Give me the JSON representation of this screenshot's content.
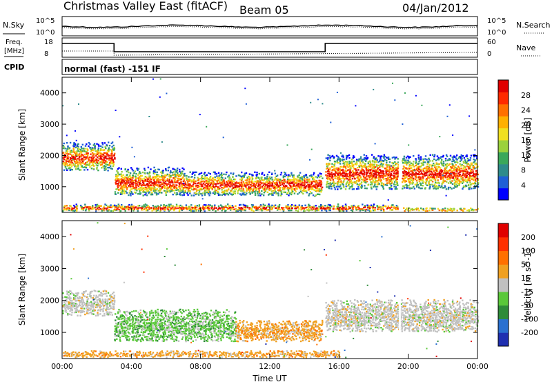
{
  "header": {
    "station": "Christmas Valley East (fitACF)",
    "beam": "Beam 05",
    "date": "04/Jan/2012"
  },
  "strips": {
    "nsky_label": "N.Sky",
    "nsearch_label": "N.Search",
    "noise_ticks": [
      "10^5",
      "10^0"
    ],
    "freq_label": "Freq.",
    "freq_unit": "[MHz]",
    "freq_ticks": [
      "18",
      "8"
    ],
    "nave_label": "Nave",
    "nave_ticks": [
      "60",
      "0"
    ],
    "cpid_label": "CPID",
    "cpid_value": "normal (fast) -151 IF"
  },
  "time_axis": {
    "label": "Time UT",
    "ticks": [
      "00:00",
      "04:00",
      "08:00",
      "12:00",
      "16:00",
      "20:00",
      "00:00"
    ]
  },
  "chart_data": [
    {
      "type": "heatmap",
      "panel": "power",
      "ylabel": "Slant Range [km]",
      "yticks": [
        1000,
        2000,
        3000,
        4000
      ],
      "ylim": [
        180,
        4500
      ],
      "xlim_hours": [
        0,
        24
      ],
      "colorbar_label": "Power [dB]",
      "colorbar_ticks": [
        4,
        8,
        12,
        16,
        20,
        24,
        28
      ],
      "colorbar_colors": [
        "#0000ff",
        "#1f5fd6",
        "#2e8b8b",
        "#3aa85a",
        "#9bd23c",
        "#f0e020",
        "#ffb000",
        "#ff7000",
        "#ff2a00",
        "#e00000"
      ],
      "bands": [
        {
          "from": 0,
          "to": 3,
          "r0": 1500,
          "r1": 2400
        },
        {
          "from": 3,
          "to": 7,
          "r0": 700,
          "r1": 1600
        },
        {
          "from": 7,
          "to": 15,
          "r0": 700,
          "r1": 1450
        },
        {
          "from": 15.2,
          "to": 19.4,
          "r0": 900,
          "r1": 2000
        },
        {
          "from": 19.6,
          "to": 24,
          "r0": 900,
          "r1": 2000
        },
        {
          "from": 0,
          "to": 19.4,
          "r0": 200,
          "r1": 420
        },
        {
          "from": 19.6,
          "to": 24,
          "r0": 200,
          "r1": 300
        }
      ]
    },
    {
      "type": "heatmap",
      "panel": "velocity",
      "ylabel": "Slant Range [km]",
      "yticks": [
        1000,
        2000,
        3000,
        4000
      ],
      "ylim": [
        180,
        4500
      ],
      "xlim_hours": [
        0,
        24
      ],
      "colorbar_label": "Velocity [m s^-1]",
      "colorbar_ticks": [
        200,
        100,
        50,
        15,
        -15,
        -50,
        -100,
        -200
      ],
      "colorbar_colors": [
        "#1f2fb0",
        "#2a70d0",
        "#2e8b3a",
        "#5ac83a",
        "#c0c0c0",
        "#f0a020",
        "#ff7000",
        "#ff3000",
        "#e00000"
      ],
      "bands": [
        {
          "from": 0,
          "to": 3,
          "r0": 1500,
          "r1": 2300,
          "class": "gray"
        },
        {
          "from": 3,
          "to": 10,
          "r0": 700,
          "r1": 1700,
          "class": "green"
        },
        {
          "from": 10,
          "to": 15,
          "r0": 700,
          "r1": 1350,
          "class": "orange"
        },
        {
          "from": 15.2,
          "to": 24,
          "r0": 1000,
          "r1": 2000,
          "class": "gray"
        },
        {
          "from": 0,
          "to": 16,
          "r0": 200,
          "r1": 400,
          "class": "orange"
        }
      ]
    }
  ]
}
